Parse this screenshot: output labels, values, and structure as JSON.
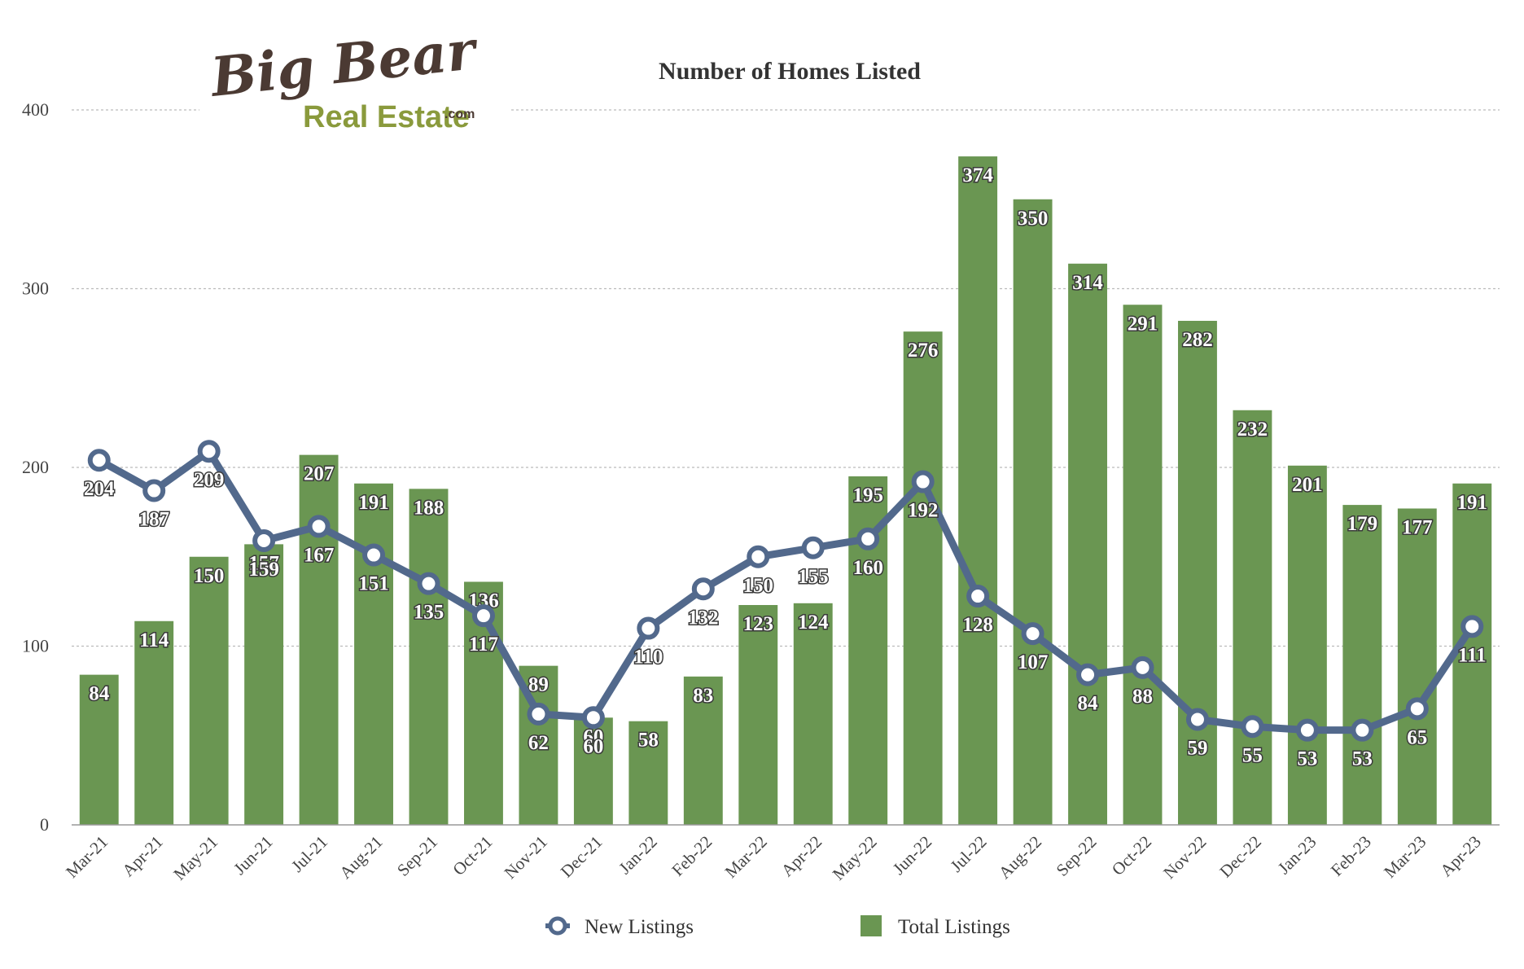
{
  "logo": {
    "script_text": "Big Bear",
    "sub_text": "Real Estate",
    "suffix_text": ".com"
  },
  "legend": {
    "new_label": "New Listings",
    "total_label": "Total Listings"
  },
  "colors": {
    "bar": "#6a9652",
    "line": "#52698c",
    "grid": "#bbbbbb",
    "axis": "#999999"
  },
  "chart_data": {
    "type": "bar",
    "title": "Number of Homes Listed",
    "xlabel": "",
    "ylabel": "",
    "ylim": [
      0,
      400
    ],
    "yticks": [
      0,
      100,
      200,
      300,
      400
    ],
    "grid": true,
    "legend_position": "bottom",
    "categories": [
      "Mar-21",
      "Apr-21",
      "May-21",
      "Jun-21",
      "Jul-21",
      "Aug-21",
      "Sep-21",
      "Oct-21",
      "Nov-21",
      "Dec-21",
      "Jan-22",
      "Feb-22",
      "Mar-22",
      "Apr-22",
      "May-22",
      "Jun-22",
      "Jul-22",
      "Aug-22",
      "Sep-22",
      "Oct-22",
      "Nov-22",
      "Dec-22",
      "Jan-23",
      "Feb-23",
      "Mar-23",
      "Apr-23"
    ],
    "series": [
      {
        "name": "Total Listings",
        "type": "bar",
        "values": [
          84,
          114,
          150,
          157,
          207,
          191,
          188,
          136,
          89,
          60,
          58,
          83,
          123,
          124,
          195,
          276,
          374,
          350,
          314,
          291,
          282,
          232,
          201,
          179,
          177,
          191
        ]
      },
      {
        "name": "New Listings",
        "type": "line",
        "values": [
          204,
          187,
          209,
          159,
          167,
          151,
          135,
          117,
          62,
          60,
          110,
          132,
          150,
          155,
          160,
          192,
          128,
          107,
          84,
          88,
          59,
          55,
          53,
          53,
          65,
          111
        ]
      }
    ]
  }
}
